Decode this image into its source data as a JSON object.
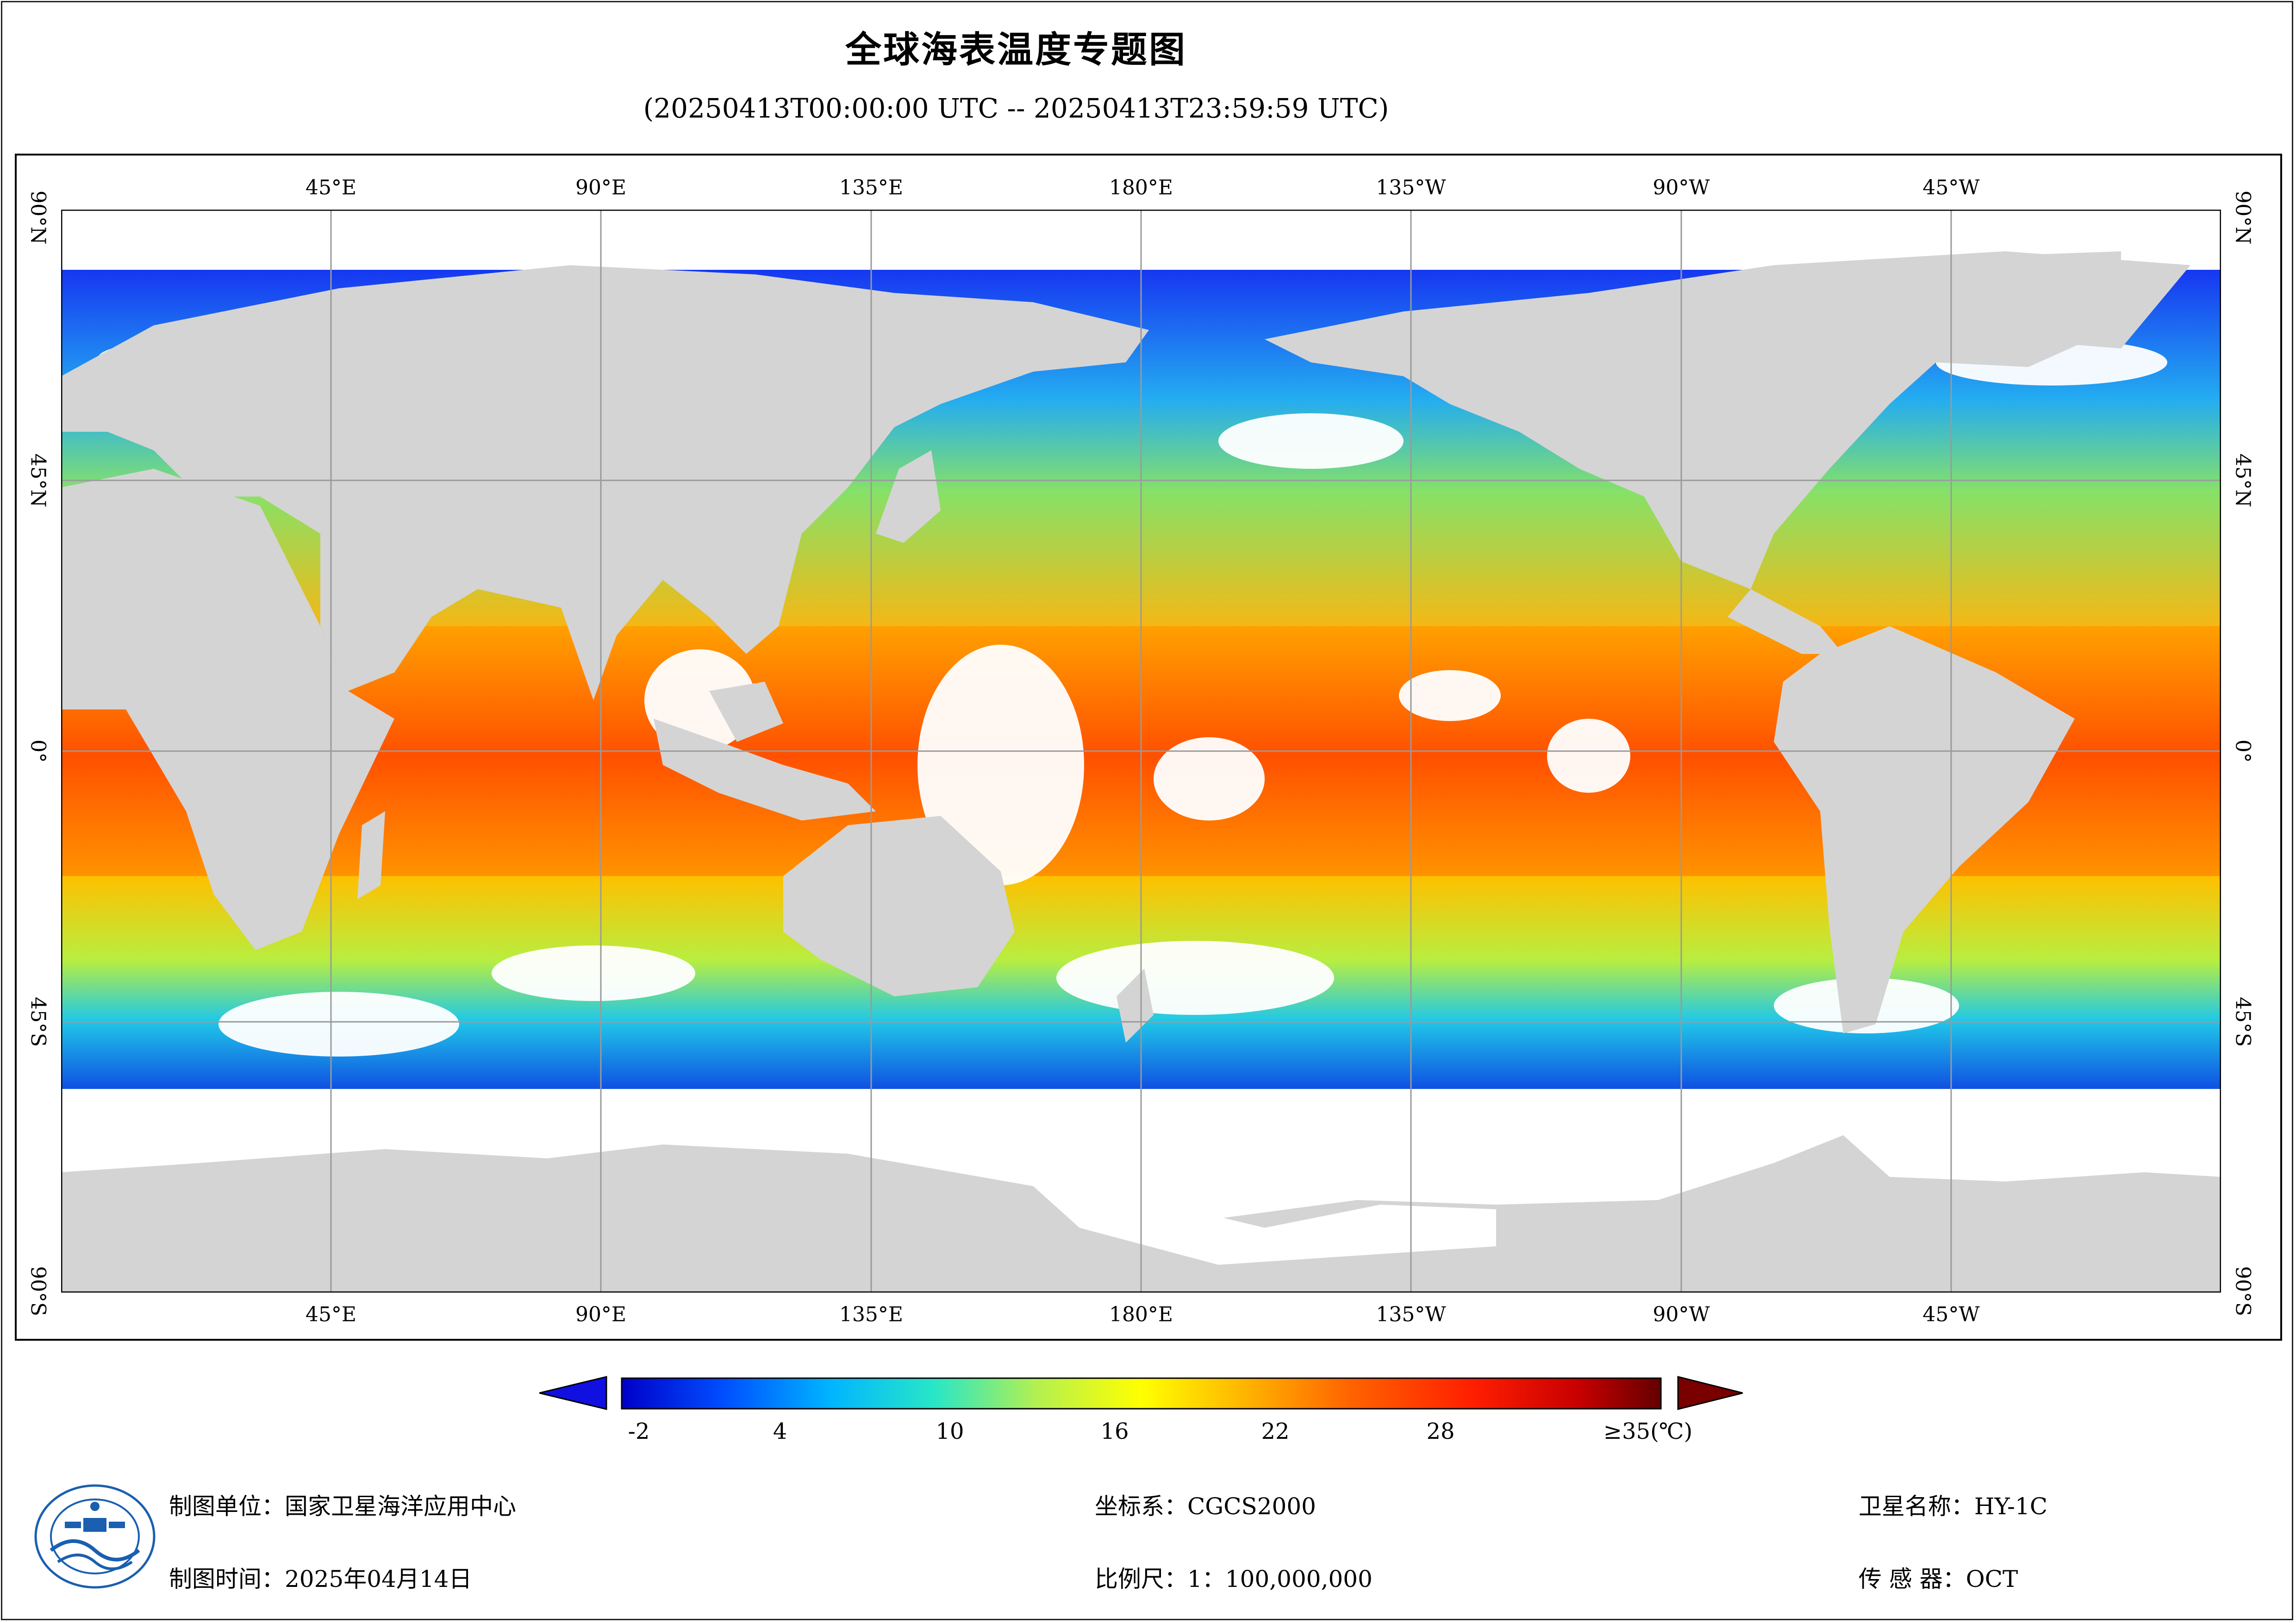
{
  "title": "全球海表温度专题图",
  "subtitle": "(20250413T00:00:00 UTC -- 20250413T23:59:59 UTC)",
  "map": {
    "lon_labels": [
      "45°E",
      "90°E",
      "135°E",
      "180°E",
      "135°W",
      "90°W",
      "45°W"
    ],
    "lat_labels": [
      "90°N",
      "45°N",
      "0°",
      "45°S",
      "90°S"
    ],
    "colors": {
      "land": "#d4d4d4",
      "no_data": "#ffffff",
      "grid": "#9a9a9a"
    }
  },
  "legend": {
    "tick_labels": [
      "-2",
      "4",
      "10",
      "16",
      "22",
      "28",
      "≥35(℃)"
    ],
    "colors": [
      "#0000c8",
      "#0050ff",
      "#00b4ff",
      "#28e6c8",
      "#b4f050",
      "#ffff00",
      "#ffb400",
      "#ff6400",
      "#ff1e00",
      "#c80000",
      "#640000"
    ]
  },
  "footer": {
    "unit_label": "制图单位：",
    "unit_value": "国家卫星海洋应用中心",
    "time_label": "制图时间：",
    "time_value": "2025年04月14日",
    "crs_label": "坐标系：",
    "crs_value": "CGCS2000",
    "scale_label": "比例尺：",
    "scale_value": "1：100,000,000",
    "satellite_label": "卫星名称：",
    "satellite_value": "HY-1C",
    "sensor_label": "传 感 器：",
    "sensor_value": "OCT"
  },
  "logo": {
    "icon": "nsoas-emblem-icon"
  }
}
